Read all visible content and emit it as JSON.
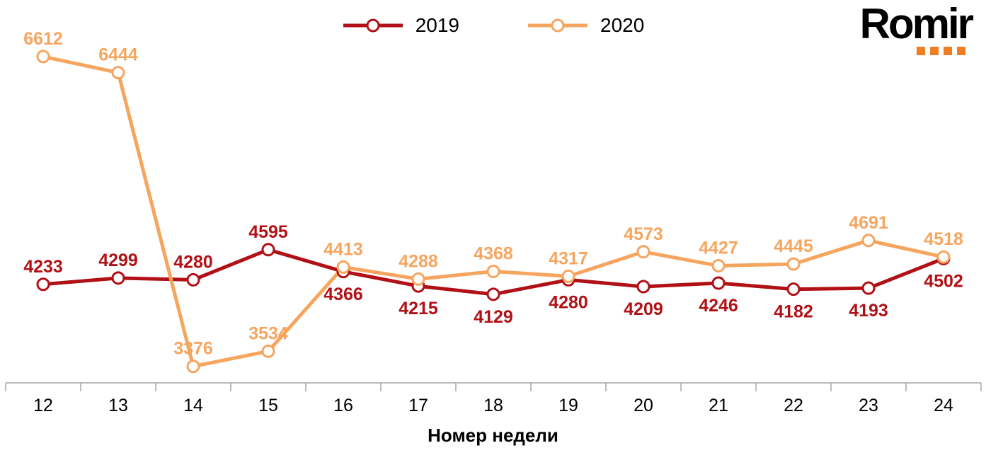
{
  "logo": {
    "text": "Romir",
    "dot_color": "#ef7d22",
    "dot_count": 4
  },
  "legend": {
    "items": [
      {
        "label": "2019"
      },
      {
        "label": "2020"
      }
    ]
  },
  "chart_data": {
    "type": "line",
    "title": "",
    "xlabel": "Номер недели",
    "ylabel": "",
    "categories": [
      12,
      13,
      14,
      15,
      16,
      17,
      18,
      19,
      20,
      21,
      22,
      23,
      24
    ],
    "series": [
      {
        "name": "2019",
        "color": "#b11116",
        "values": [
          4233,
          4299,
          4280,
          4595,
          4366,
          4215,
          4129,
          4280,
          4209,
          4246,
          4182,
          4193,
          4502
        ],
        "label_positions": [
          "above",
          "above",
          "above",
          "above",
          "below",
          "below",
          "below",
          "below",
          "below",
          "below",
          "below",
          "below",
          "below"
        ]
      },
      {
        "name": "2020",
        "color": "#f6a55f",
        "values": [
          6612,
          6444,
          3376,
          3534,
          4413,
          4288,
          4368,
          4317,
          4573,
          4427,
          4445,
          4691,
          4518
        ],
        "label_positions": [
          "above",
          "above",
          "above",
          "above",
          "above",
          "above",
          "above",
          "above",
          "above",
          "above",
          "above",
          "above",
          "above"
        ]
      }
    ],
    "ylim": [
      3300,
      6700
    ],
    "grid": false,
    "legend_position": "top-center",
    "axis_color": "#a6a6a6"
  }
}
